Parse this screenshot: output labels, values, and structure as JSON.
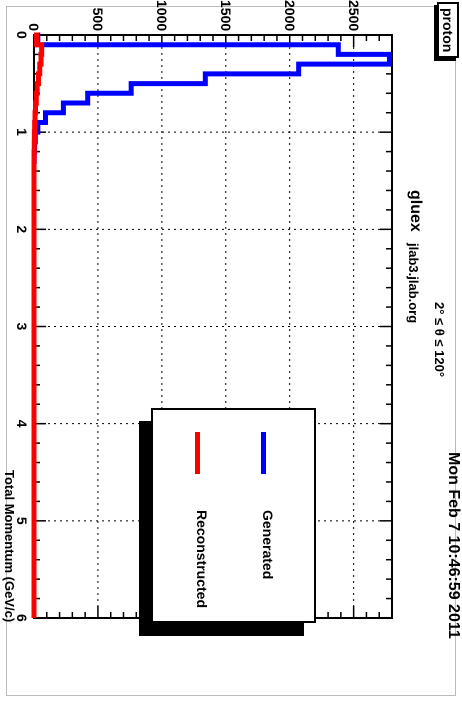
{
  "header": {
    "tag": "proton",
    "timestamp": "Mon Feb  7 10:46:59 2011",
    "experiment": "gluex",
    "host": "jlab3.jlab.org",
    "cut": "2° ≤ θ ≤ 120°"
  },
  "legend": {
    "items": [
      {
        "label": "Generated",
        "color": "#0000ff"
      },
      {
        "label": "Reconstructed",
        "color": "#ff0000"
      }
    ]
  },
  "chart_data": {
    "type": "line",
    "xlabel": "Total Momentum (GeV/c)",
    "ylabel": "",
    "xlim": [
      0,
      6
    ],
    "ylim": [
      0,
      2800
    ],
    "grid": true,
    "legend_position": "bottom-right",
    "x_ticks": [
      "0",
      "1",
      "2",
      "3",
      "4",
      "5",
      "6"
    ],
    "y_ticks": [
      "0",
      "500",
      "1000",
      "1500",
      "2000",
      "2500"
    ],
    "bin_edges": [
      0.0,
      0.1,
      0.2,
      0.3,
      0.4,
      0.5,
      0.6,
      0.7,
      0.8,
      0.9,
      1.0,
      1.1,
      1.2,
      1.3,
      1.4,
      1.5,
      1.6
    ],
    "series": [
      {
        "name": "Generated",
        "color": "#0000ff",
        "values": [
          30,
          2380,
          2780,
          2070,
          1340,
          760,
          420,
          230,
          90,
          30,
          10,
          5,
          2,
          0,
          0,
          0
        ]
      },
      {
        "name": "Reconstructed",
        "color": "#ff0000",
        "values": [
          20,
          60,
          55,
          45,
          35,
          25,
          18,
          12,
          8,
          5,
          3,
          2,
          1,
          0,
          0,
          0
        ]
      }
    ]
  }
}
